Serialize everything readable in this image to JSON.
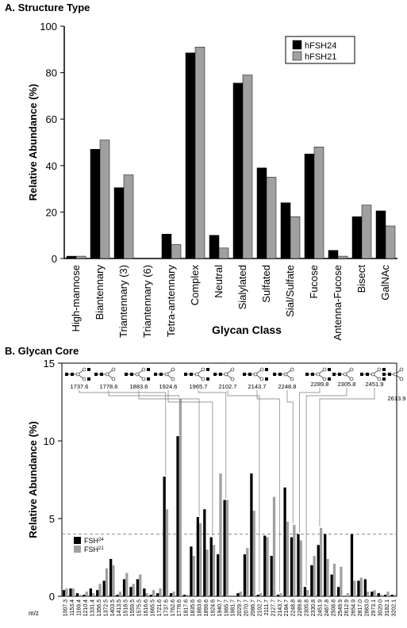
{
  "panel_a": {
    "heading": "A. Structure Type"
  },
  "panel_b": {
    "heading": "B. Glycan Core"
  },
  "colors": {
    "series_1": "#000000",
    "series_2": "#a0a0a0",
    "grid_dash": "#8c8c8c",
    "axis": "#000000"
  },
  "chart_data": [
    {
      "type": "bar",
      "title": "A. Structure Type",
      "xlabel": "Glycan Class",
      "ylabel": "Relative Abundance (%)",
      "ylim": [
        0,
        100
      ],
      "yticks": [
        0,
        20,
        40,
        60,
        80,
        100
      ],
      "grid": false,
      "legend_position": "top-right",
      "categories": [
        "High-mannose",
        "Biantennary",
        "Triantennary (3)",
        "Triantennary (6)",
        "Tetra-antennary",
        "Complex",
        "Neutral",
        "Sialylated",
        "Sulfated",
        "Sial/Sulfate",
        "Fucose",
        "Antenna-Fucose",
        "Bisect",
        "GalNAc"
      ],
      "series": [
        {
          "name": "hFSH24",
          "values": [
            1,
            47,
            30.5,
            0,
            10.5,
            88.5,
            10,
            75.5,
            39,
            24,
            45,
            3.5,
            18,
            20.5
          ]
        },
        {
          "name": "hFSH21",
          "values": [
            1,
            51,
            36,
            0,
            6,
            91,
            4.5,
            79,
            35,
            18,
            48,
            1,
            23,
            14
          ]
        }
      ]
    },
    {
      "type": "bar",
      "title": "B. Glycan Core",
      "xlabel": "m/z",
      "ylabel": "Relative Abundance (%)",
      "ylim": [
        0,
        15
      ],
      "yticks": [
        0,
        5,
        10,
        15
      ],
      "reference_line": 4,
      "grid": false,
      "legend_position": "lower-left",
      "categories": [
        "1007.3",
        "1153.4",
        "1169.4",
        "1210.4",
        "1331.4",
        "1356.5",
        "1372.5",
        "1403.5",
        "1413.5",
        "1518.5",
        "1559.5",
        "1575.5",
        "1616.6",
        "1665.5",
        "1721.6",
        "1737.6",
        "1762.6",
        "1778.6",
        "1817.6",
        "1835.6",
        "1883.6",
        "1899.6",
        "1924.6",
        "1940.7",
        "1965.7",
        "1981.7",
        "2029.7",
        "2070.7",
        "2086.7",
        "2102.7",
        "2111.7",
        "2127.7",
        "2143.7",
        "2184.7",
        "2248.8",
        "2289.8",
        "2305.8",
        "2330.8",
        "2451.9",
        "2467.8",
        "2508.8",
        "2549.9",
        "2612.9",
        "2654.9",
        "2817.0",
        "2883.0",
        "2973.1",
        "3020.0",
        "3182.1",
        "3202.1"
      ],
      "series": [
        {
          "name": "FSH24",
          "label_base": "FSH",
          "label_sup": "24",
          "values": [
            0.4,
            0.5,
            0.2,
            0.1,
            0.5,
            0.4,
            1.0,
            2.4,
            0.1,
            1.1,
            0.6,
            1.1,
            0.5,
            0.1,
            0.2,
            7.7,
            0.2,
            10.3,
            0.1,
            3.2,
            5.1,
            5.6,
            3.8,
            2.7,
            6.2,
            0.0,
            0.2,
            2.7,
            7.9,
            0.1,
            3.9,
            2.6,
            0.1,
            7.0,
            3.8,
            4.0,
            0.6,
            2.0,
            3.3,
            4.0,
            1.4,
            0.6,
            0.0,
            4.0,
            1.0,
            1.1,
            0.3,
            0.2,
            0.1,
            0.1
          ]
        },
        {
          "name": "FSH21",
          "label_base": "FSH",
          "label_sup": "21",
          "values": [
            0.5,
            0.5,
            0.1,
            0.3,
            0.2,
            0.8,
            1.8,
            2.0,
            0.3,
            1.5,
            0.8,
            1.4,
            0.2,
            0.4,
            0.5,
            5.6,
            0.3,
            12.7,
            0.1,
            2.6,
            4.7,
            3.0,
            3.3,
            7.9,
            6.2,
            0.0,
            0.3,
            3.1,
            5.5,
            0.2,
            3.8,
            6.4,
            0.2,
            4.8,
            4.6,
            3.6,
            0.4,
            2.6,
            4.4,
            2.4,
            2.1,
            1.9,
            0.2,
            1.0,
            1.2,
            0.3,
            0.4,
            0.1,
            0.3,
            0.1
          ]
        }
      ],
      "structure_labels": [
        "1737.6",
        "1778.6",
        "1883.6",
        "1924.6",
        "1965.7",
        "2102.7",
        "2143.7",
        "2248.8",
        "2289.8",
        "2305.8",
        "2451.9",
        "2613.9"
      ]
    }
  ]
}
